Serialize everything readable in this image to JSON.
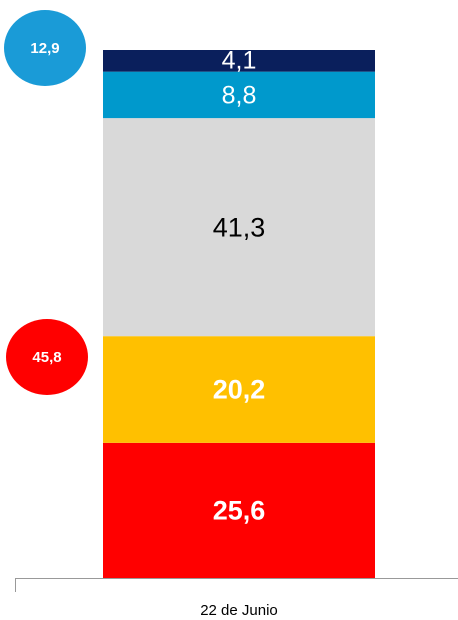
{
  "chart_data": {
    "type": "stacked_bar",
    "categories": [
      "22 de Junio"
    ],
    "ylim": [
      0,
      100
    ],
    "series": [
      {
        "color": "#ff0000",
        "label_color": "#ffffff",
        "values": [
          25.6
        ],
        "value_labels": [
          "25,6"
        ]
      },
      {
        "color": "#ffc000",
        "label_color": "#ffffff",
        "values": [
          20.2
        ],
        "value_labels": [
          "20,2"
        ]
      },
      {
        "color": "#d9d9d9",
        "label_color": "#000000",
        "values": [
          41.3
        ],
        "value_labels": [
          "41,3"
        ]
      },
      {
        "color": "#0099cc",
        "label_color": "#ffffff",
        "values": [
          8.8
        ],
        "value_labels": [
          "8,8"
        ]
      },
      {
        "color": "#0a1f5c",
        "label_color": "#ffffff",
        "values": [
          4.1
        ],
        "value_labels": [
          "4,1"
        ]
      }
    ],
    "annotations": [
      {
        "text": "12,9",
        "color": "#1a9bd7"
      },
      {
        "text": "45,8",
        "color": "#ff0000"
      }
    ]
  }
}
